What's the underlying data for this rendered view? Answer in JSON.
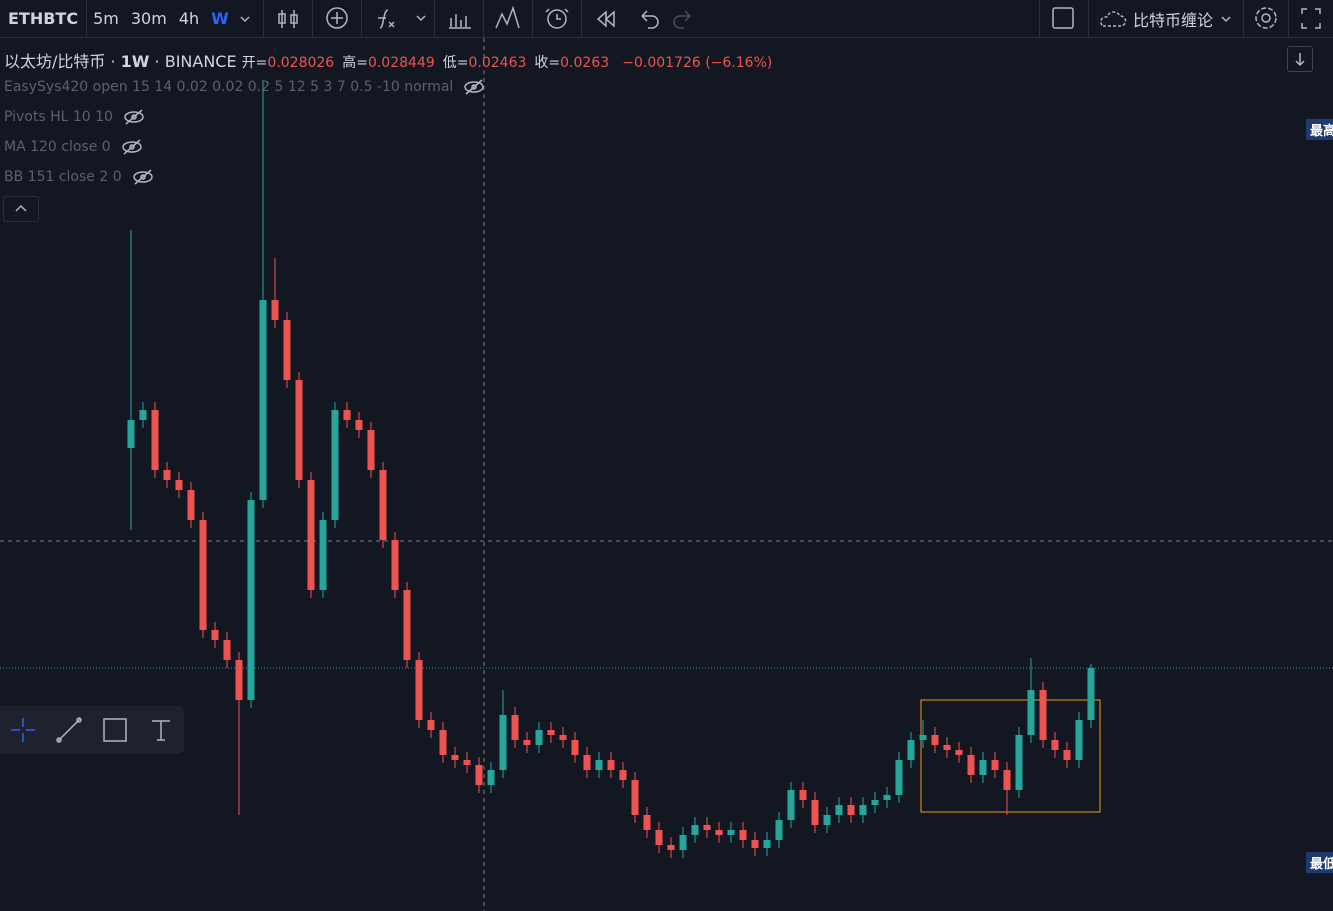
{
  "toolbar": {
    "symbol": "ETHBTC",
    "intervals": [
      "5m",
      "30m",
      "4h",
      "W"
    ],
    "layout_name": "比特币缠论"
  },
  "legend": {
    "name": "以太坊/比特币",
    "interval": "1W",
    "exchange": "BINANCE",
    "ohlc": [
      {
        "label": "开=",
        "value": 0.028026
      },
      {
        "label": "高=",
        "value": 0.028449
      },
      {
        "label": "低=",
        "value": 0.02463
      },
      {
        "label": "收=",
        "value": 0.0263
      }
    ],
    "change": "−0.001726 (−6.16%)"
  },
  "indicators": [
    "EasySys420 open 15 14 0.02 0.02 0.2 5 12 5 3 7 0.5 -10 normal",
    "Pivots HL 10 10",
    "MA 120 close 0",
    "BB 151 close 2 0"
  ],
  "price_labels": [
    "最高价",
    "最低价"
  ],
  "chart_data": {
    "type": "candlestick",
    "ylim": [
      0.0137,
      0.101
    ],
    "up_color": "#26a69a",
    "down_color": "#ef5350",
    "open": [
      0.06,
      0.0628,
      0.0638,
      0.0578,
      0.0568,
      0.0558,
      0.0528,
      0.0418,
      0.0408,
      0.0388,
      0.0348,
      0.0548,
      0.0748,
      0.0728,
      0.0668,
      0.0568,
      0.0458,
      0.0528,
      0.0638,
      0.0628,
      0.0618,
      0.0578,
      0.0508,
      0.0458,
      0.0388,
      0.0328,
      0.0318,
      0.0293,
      0.0288,
      0.0283,
      0.0263,
      0.0278,
      0.0333,
      0.0308,
      0.0303,
      0.0318,
      0.0313,
      0.0308,
      0.0293,
      0.0278,
      0.0288,
      0.0278,
      0.0268,
      0.0233,
      0.0218,
      0.0203,
      0.0198,
      0.0213,
      0.0223,
      0.0218,
      0.0213,
      0.0218,
      0.0208,
      0.02,
      0.0208,
      0.0228,
      0.0258,
      0.0248,
      0.0223,
      0.0233,
      0.0243,
      0.0233,
      0.0243,
      0.0248,
      0.0253,
      0.0288,
      0.0308,
      0.0313,
      0.0303,
      0.0298,
      0.0293,
      0.0273,
      0.0288,
      0.0278,
      0.0258,
      0.0313,
      0.0358,
      0.0308,
      0.0298,
      0.0288,
      0.0328
    ],
    "high": [
      0.0818,
      0.0646,
      0.0646,
      0.0586,
      0.0576,
      0.0566,
      0.0536,
      0.0426,
      0.0416,
      0.0396,
      0.0556,
      0.0968,
      0.079,
      0.0736,
      0.0676,
      0.0576,
      0.0536,
      0.0646,
      0.0646,
      0.0636,
      0.0626,
      0.0586,
      0.0516,
      0.0466,
      0.0396,
      0.0336,
      0.0326,
      0.0301,
      0.0296,
      0.0291,
      0.0286,
      0.0358,
      0.0341,
      0.0316,
      0.0326,
      0.0326,
      0.0321,
      0.0316,
      0.0301,
      0.0296,
      0.0296,
      0.0286,
      0.0276,
      0.0241,
      0.0226,
      0.0211,
      0.0221,
      0.0231,
      0.0231,
      0.0226,
      0.0226,
      0.0226,
      0.0216,
      0.0216,
      0.0236,
      0.0266,
      0.0266,
      0.0256,
      0.0241,
      0.0251,
      0.0251,
      0.0251,
      0.0256,
      0.0261,
      0.0296,
      0.0316,
      0.0328,
      0.0321,
      0.0311,
      0.0306,
      0.0301,
      0.0296,
      0.0296,
      0.0286,
      0.0321,
      0.039,
      0.0366,
      0.0316,
      0.0306,
      0.0336,
      0.0384
    ],
    "low": [
      0.0518,
      0.062,
      0.057,
      0.056,
      0.055,
      0.052,
      0.041,
      0.04,
      0.038,
      0.0233,
      0.034,
      0.054,
      0.072,
      0.066,
      0.056,
      0.045,
      0.045,
      0.052,
      0.062,
      0.061,
      0.057,
      0.05,
      0.045,
      0.038,
      0.032,
      0.031,
      0.0285,
      0.028,
      0.0275,
      0.0255,
      0.0255,
      0.027,
      0.03,
      0.0295,
      0.0295,
      0.0305,
      0.03,
      0.0285,
      0.027,
      0.027,
      0.027,
      0.026,
      0.0225,
      0.021,
      0.0195,
      0.019,
      0.019,
      0.0205,
      0.021,
      0.0205,
      0.0205,
      0.02,
      0.0192,
      0.0192,
      0.02,
      0.022,
      0.024,
      0.0215,
      0.0215,
      0.0225,
      0.0225,
      0.0225,
      0.0235,
      0.024,
      0.0245,
      0.028,
      0.03,
      0.0295,
      0.029,
      0.0285,
      0.0265,
      0.0265,
      0.027,
      0.0233,
      0.025,
      0.0305,
      0.03,
      0.029,
      0.028,
      0.028,
      0.032
    ],
    "close": [
      0.0628,
      0.0638,
      0.0578,
      0.0568,
      0.0558,
      0.0528,
      0.0418,
      0.0408,
      0.0388,
      0.0348,
      0.0548,
      0.0748,
      0.0728,
      0.0668,
      0.0568,
      0.0458,
      0.0528,
      0.0638,
      0.0628,
      0.0618,
      0.0578,
      0.0508,
      0.0458,
      0.0388,
      0.0328,
      0.0318,
      0.0293,
      0.0288,
      0.0283,
      0.0263,
      0.0278,
      0.0333,
      0.0308,
      0.0303,
      0.0318,
      0.0313,
      0.0308,
      0.0293,
      0.0278,
      0.0288,
      0.0278,
      0.0268,
      0.0233,
      0.0218,
      0.0203,
      0.0198,
      0.0213,
      0.0223,
      0.0218,
      0.0213,
      0.0218,
      0.0208,
      0.02,
      0.0208,
      0.0228,
      0.0258,
      0.0248,
      0.0223,
      0.0233,
      0.0243,
      0.0233,
      0.0243,
      0.0248,
      0.0253,
      0.0288,
      0.0308,
      0.0313,
      0.0303,
      0.0298,
      0.0293,
      0.0273,
      0.0288,
      0.0278,
      0.0258,
      0.0313,
      0.0358,
      0.0308,
      0.0298,
      0.0288,
      0.0328,
      0.038
    ]
  }
}
